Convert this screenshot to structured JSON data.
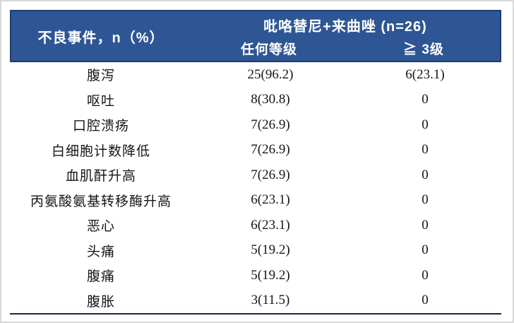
{
  "table": {
    "header": {
      "col1_label": "不良事件，n（%）",
      "group_label": "吡咯替尼+来曲唑 (n=26)",
      "sub_any_grade": "任何等级",
      "sub_grade3": "≧ 3级"
    },
    "rows": [
      {
        "event": "腹泻",
        "any_grade": "25(96.2)",
        "grade3": "6(23.1)"
      },
      {
        "event": "呕吐",
        "any_grade": "8(30.8)",
        "grade3": "0"
      },
      {
        "event": "口腔溃疡",
        "any_grade": "7(26.9)",
        "grade3": "0"
      },
      {
        "event": "白细胞计数降低",
        "any_grade": "7(26.9)",
        "grade3": "0"
      },
      {
        "event": "血肌酐升高",
        "any_grade": "7(26.9)",
        "grade3": "0"
      },
      {
        "event": "丙氨酸氨基转移酶升高",
        "any_grade": "6(23.1)",
        "grade3": "0"
      },
      {
        "event": "恶心",
        "any_grade": "6(23.1)",
        "grade3": "0"
      },
      {
        "event": "头痛",
        "any_grade": "5(19.2)",
        "grade3": "0"
      },
      {
        "event": "腹痛",
        "any_grade": "5(19.2)",
        "grade3": "0"
      },
      {
        "event": "腹胀",
        "any_grade": "3(11.5)",
        "grade3": "0"
      }
    ],
    "colors": {
      "header_bg": "#2e5695",
      "header_border": "#1c3c6e",
      "header_text": "#ffffff",
      "body_text": "#151515",
      "bottom_rule": "#1b2440",
      "page_border": "#d8d8d8"
    }
  }
}
